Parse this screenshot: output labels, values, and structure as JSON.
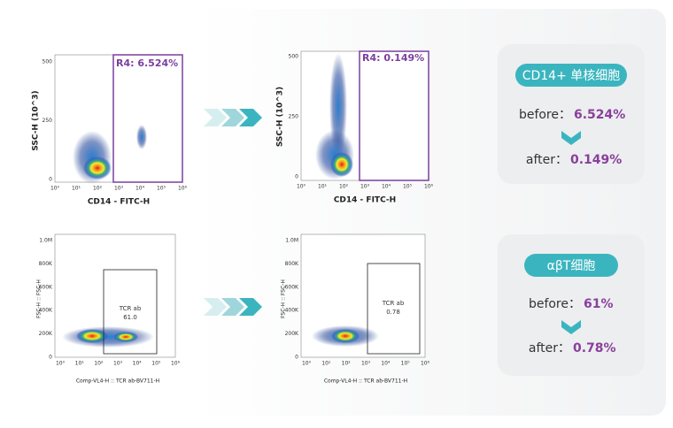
{
  "plots": [
    {
      "y_label": "SSC-H (10^3)",
      "x_label": "CD14 - FITC-H",
      "y_ticks": [
        "500",
        "250",
        "0"
      ],
      "x_ticks": [
        "10⁰",
        "10¹",
        "10²",
        "10³",
        "10⁴",
        "10⁵",
        "10⁶"
      ],
      "gate_label": "R4: 6.524%"
    },
    {
      "y_label": "SSC-H (10^3)",
      "x_label": "CD14 - FITC-H",
      "y_ticks": [
        "500",
        "250",
        "0"
      ],
      "x_ticks": [
        "10⁰",
        "10¹",
        "10²",
        "10³",
        "10⁴",
        "10⁵",
        "10⁶"
      ],
      "gate_label": "R4: 0.149%"
    },
    {
      "y_label": "FSC-H :: FSC-H",
      "x_label": "Comp-VL4-H :: TCR ab-BV711-H",
      "y_ticks": [
        "1.0M",
        "800K",
        "600K",
        "400K",
        "200K",
        "0"
      ],
      "x_ticks": [
        "10⁰",
        "10¹",
        "10²",
        "10³",
        "10⁴",
        "10⁵",
        "10⁶"
      ],
      "gate_label": "TCR ab",
      "gate_value": "61.0"
    },
    {
      "y_label": "FSC-H :: FSC-H",
      "x_label": "Comp-VL4-H :: TCR ab-BV711-H",
      "y_ticks": [
        "1.0M",
        "800K",
        "600K",
        "400K",
        "200K",
        "0"
      ],
      "x_ticks": [
        "10⁰",
        "10¹",
        "10²",
        "10³",
        "10⁴",
        "10⁵",
        "10⁶"
      ],
      "gate_label": "TCR ab",
      "gate_value": "0.78"
    }
  ],
  "summaries": [
    {
      "title": "CD14+ 单核细胞",
      "before_label": "before：",
      "before_value": "6.524%",
      "after_label": "after：",
      "after_value": "0.149%"
    },
    {
      "title": "αβT细胞",
      "before_label": "before：",
      "before_value": "61%",
      "after_label": "after：",
      "after_value": "0.78%"
    }
  ]
}
